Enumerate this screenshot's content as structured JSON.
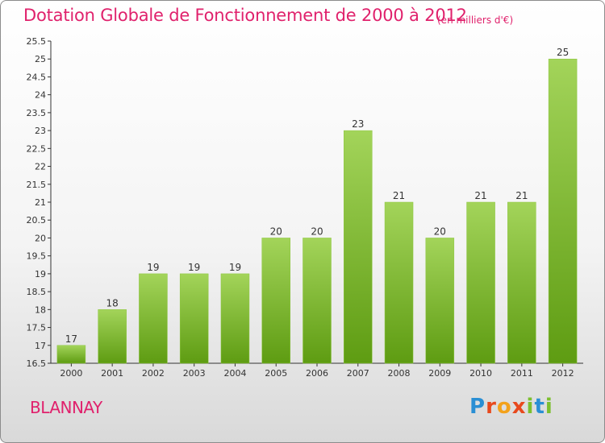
{
  "header": {
    "title": "Dotation Globale de Fonctionnement de 2000 à 2012",
    "unit": "(en milliers d'€)"
  },
  "footer": {
    "city": "BLANNAY",
    "logo": "Proxiti"
  },
  "colors": {
    "title": "#e0216c",
    "bar_light": "#a3d45a",
    "bar_dark": "#5e9c12",
    "axis": "#333333"
  },
  "chart_data": {
    "type": "bar",
    "title": "Dotation Globale de Fonctionnement de 2000 à 2012",
    "xlabel": "",
    "ylabel": "",
    "categories": [
      "2000",
      "2001",
      "2002",
      "2003",
      "2004",
      "2005",
      "2006",
      "2007",
      "2008",
      "2009",
      "2010",
      "2011",
      "2012"
    ],
    "values": [
      17,
      18,
      19,
      19,
      19,
      20,
      20,
      23,
      21,
      20,
      21,
      21,
      25
    ],
    "data_labels": [
      "17",
      "18",
      "19",
      "19",
      "19",
      "20",
      "20",
      "23",
      "21",
      "20",
      "21",
      "21",
      "25"
    ],
    "ylim": [
      16.5,
      25.5
    ],
    "yticks": [
      "16.5",
      "17",
      "17.5",
      "18",
      "18.5",
      "19",
      "19.5",
      "20",
      "20.5",
      "21",
      "21.5",
      "22",
      "22.5",
      "23",
      "23.5",
      "24",
      "24.5",
      "25",
      "25.5"
    ],
    "grid": false,
    "legend": "none"
  }
}
